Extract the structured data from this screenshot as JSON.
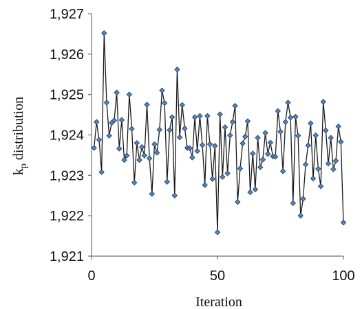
{
  "chart_data": {
    "type": "line",
    "xlabel": "Iteration",
    "ylabel_main": "k",
    "ylabel_sub": "p",
    "ylabel_rest": " distribution",
    "xlim": [
      0,
      100
    ],
    "ylim": [
      1.921,
      1.927
    ],
    "x_ticks": [
      0,
      50,
      100
    ],
    "x_tick_labels": [
      "0",
      "50",
      "100"
    ],
    "y_ticks": [
      1.921,
      1.922,
      1.923,
      1.924,
      1.925,
      1.926,
      1.927
    ],
    "y_tick_labels": [
      "1,921",
      "1,922",
      "1,923",
      "1,924",
      "1,925",
      "1,926",
      "1,927"
    ],
    "grid": false,
    "marker": "diamond",
    "line_color": "#1a1a1a",
    "marker_fill": "#5b86b8",
    "marker_edge": "#1f3f66",
    "series": [
      {
        "x": [
          1,
          2,
          3,
          4,
          5,
          6,
          7,
          8,
          9,
          10,
          11,
          12,
          13,
          14,
          15,
          16,
          17,
          18,
          19,
          20,
          21,
          22,
          23,
          24,
          25,
          26,
          27,
          28,
          29,
          30,
          31,
          32,
          33,
          34,
          35,
          36,
          37,
          38,
          39,
          40,
          41,
          42,
          43,
          44,
          45,
          46,
          47,
          48,
          49,
          50,
          51,
          52,
          53,
          54,
          55,
          56,
          57,
          58,
          59,
          60,
          61,
          62,
          63,
          64,
          65,
          66,
          67,
          68,
          69,
          70,
          71,
          72,
          73,
          74,
          75,
          76,
          77,
          78,
          79,
          80,
          81,
          82,
          83,
          84,
          85,
          86,
          87,
          88,
          89,
          90,
          91,
          92,
          93,
          94,
          95,
          96,
          97,
          98,
          99,
          100
        ],
        "values": [
          1.92368,
          1.92432,
          1.92388,
          1.92308,
          1.92652,
          1.9248,
          1.92398,
          1.9243,
          1.92436,
          1.92505,
          1.92366,
          1.92437,
          1.92338,
          1.92349,
          1.925,
          1.92415,
          1.92282,
          1.9238,
          1.92338,
          1.9237,
          1.92349,
          1.92475,
          1.92342,
          1.92254,
          1.92377,
          1.92356,
          1.92413,
          1.9251,
          1.92479,
          1.92284,
          1.92412,
          1.92444,
          1.9225,
          1.92562,
          1.92394,
          1.92474,
          1.92416,
          1.92368,
          1.92367,
          1.92344,
          1.92444,
          1.9236,
          1.92447,
          1.92375,
          1.92276,
          1.92447,
          1.92377,
          1.92291,
          1.92373,
          1.92159,
          1.92451,
          1.92296,
          1.92419,
          1.92305,
          1.92399,
          1.92432,
          1.92472,
          1.92234,
          1.92317,
          1.92379,
          1.92396,
          1.92434,
          1.92258,
          1.92354,
          1.92265,
          1.92393,
          1.9232,
          1.92339,
          1.92405,
          1.92353,
          1.92381,
          1.92347,
          1.92346,
          1.92459,
          1.92408,
          1.9231,
          1.92432,
          1.9248,
          1.92443,
          1.92231,
          1.92445,
          1.92398,
          1.922,
          1.92242,
          1.92327,
          1.92374,
          1.92429,
          1.92292,
          1.92399,
          1.92316,
          1.92273,
          1.92482,
          1.92411,
          1.92329,
          1.92393,
          1.92315,
          1.92336,
          1.92421,
          1.92383,
          1.92183
        ]
      }
    ]
  }
}
